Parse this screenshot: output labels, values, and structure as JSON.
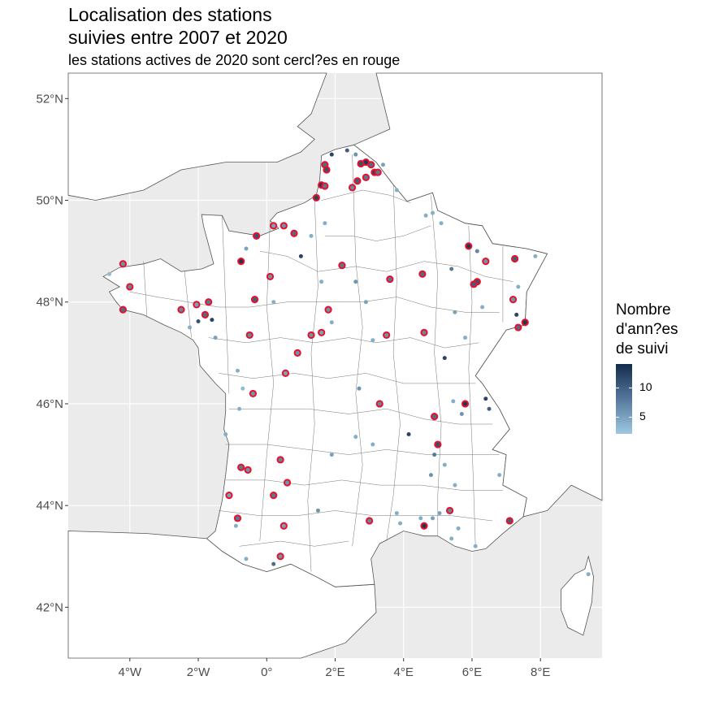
{
  "title_line1": "Localisation des stations",
  "title_line2": "suivies entre 2007 et 2020",
  "subtitle": "les stations actives de 2020 sont cercl?es en rouge",
  "legend": {
    "title_lines": [
      "Nombre",
      "d'ann?es",
      "de suivi"
    ],
    "labels": [
      {
        "value": 10,
        "text": "10"
      },
      {
        "value": 5,
        "text": "5"
      }
    ],
    "range": [
      2,
      14
    ],
    "colors": {
      "low": "#9dc9e0",
      "high": "#132b4b",
      "active_ring": "#e8102a"
    }
  },
  "axes": {
    "lon_range": [
      -5.8,
      9.8
    ],
    "lat_range": [
      41.0,
      52.5
    ],
    "x_ticks": [
      {
        "value": -4,
        "label": "4°W"
      },
      {
        "value": -2,
        "label": "2°W"
      },
      {
        "value": 0,
        "label": "0°"
      },
      {
        "value": 2,
        "label": "2°E"
      },
      {
        "value": 4,
        "label": "4°E"
      },
      {
        "value": 6,
        "label": "6°E"
      },
      {
        "value": 8,
        "label": "8°E"
      }
    ],
    "y_ticks": [
      {
        "value": 52,
        "label": "52°N"
      },
      {
        "value": 50,
        "label": "50°N"
      },
      {
        "value": 48,
        "label": "48°N"
      },
      {
        "value": 46,
        "label": "46°N"
      },
      {
        "value": 44,
        "label": "44°N"
      },
      {
        "value": 42,
        "label": "42°N"
      }
    ],
    "background": "#ebebeb",
    "land": "#ffffff"
  },
  "chart_data": {
    "type": "scatter",
    "x_axis": "longitude",
    "y_axis": "latitude",
    "color_variable": "Nombre d'ann?es de suivi",
    "points": [
      {
        "lon": 1.9,
        "lat": 50.9,
        "years": 12,
        "active": false
      },
      {
        "lon": 2.35,
        "lat": 50.98,
        "years": 10,
        "active": false
      },
      {
        "lon": 2.6,
        "lat": 50.9,
        "years": 6,
        "active": false
      },
      {
        "lon": 2.9,
        "lat": 50.75,
        "years": 13,
        "active": true
      },
      {
        "lon": 3.05,
        "lat": 50.7,
        "years": 9,
        "active": true
      },
      {
        "lon": 2.75,
        "lat": 50.72,
        "years": 11,
        "active": true
      },
      {
        "lon": 3.15,
        "lat": 50.55,
        "years": 12,
        "active": true
      },
      {
        "lon": 3.25,
        "lat": 50.55,
        "years": 8,
        "active": true
      },
      {
        "lon": 3.4,
        "lat": 50.7,
        "years": 5,
        "active": false
      },
      {
        "lon": 2.65,
        "lat": 50.38,
        "years": 10,
        "active": true
      },
      {
        "lon": 2.9,
        "lat": 50.45,
        "years": 8,
        "active": true
      },
      {
        "lon": 2.5,
        "lat": 50.25,
        "years": 7,
        "active": true
      },
      {
        "lon": 1.7,
        "lat": 50.7,
        "years": 9,
        "active": true
      },
      {
        "lon": 1.75,
        "lat": 50.6,
        "years": 11,
        "active": true
      },
      {
        "lon": 1.6,
        "lat": 50.3,
        "years": 13,
        "active": true
      },
      {
        "lon": 1.7,
        "lat": 50.28,
        "years": 8,
        "active": true
      },
      {
        "lon": 1.45,
        "lat": 50.05,
        "years": 12,
        "active": true
      },
      {
        "lon": 3.8,
        "lat": 50.2,
        "years": 4,
        "active": false
      },
      {
        "lon": 1.7,
        "lat": 49.55,
        "years": 4,
        "active": false
      },
      {
        "lon": 0.5,
        "lat": 49.5,
        "years": 6,
        "active": true
      },
      {
        "lon": 0.2,
        "lat": 49.5,
        "years": 5,
        "active": true
      },
      {
        "lon": -0.3,
        "lat": 49.3,
        "years": 11,
        "active": true
      },
      {
        "lon": 0.8,
        "lat": 49.35,
        "years": 9,
        "active": true
      },
      {
        "lon": 1.3,
        "lat": 49.3,
        "years": 4,
        "active": false
      },
      {
        "lon": -0.6,
        "lat": 49.05,
        "years": 5,
        "active": false
      },
      {
        "lon": -0.75,
        "lat": 48.8,
        "years": 13,
        "active": true
      },
      {
        "lon": 1.0,
        "lat": 48.9,
        "years": 12,
        "active": false
      },
      {
        "lon": 2.2,
        "lat": 48.72,
        "years": 8,
        "active": true
      },
      {
        "lon": 2.6,
        "lat": 48.4,
        "years": 6,
        "active": false
      },
      {
        "lon": 2.9,
        "lat": 48.0,
        "years": 5,
        "active": false
      },
      {
        "lon": 0.1,
        "lat": 48.5,
        "years": 6,
        "active": true
      },
      {
        "lon": 1.6,
        "lat": 48.4,
        "years": 4,
        "active": false
      },
      {
        "lon": 0.2,
        "lat": 48.0,
        "years": 4,
        "active": false
      },
      {
        "lon": -4.2,
        "lat": 48.75,
        "years": 6,
        "active": true
      },
      {
        "lon": -4.6,
        "lat": 48.55,
        "years": 3,
        "active": false
      },
      {
        "lon": -4.0,
        "lat": 48.3,
        "years": 7,
        "active": true
      },
      {
        "lon": -4.2,
        "lat": 47.85,
        "years": 9,
        "active": true
      },
      {
        "lon": -2.5,
        "lat": 47.85,
        "years": 7,
        "active": true
      },
      {
        "lon": -2.05,
        "lat": 47.95,
        "years": 5,
        "active": true
      },
      {
        "lon": -1.7,
        "lat": 48.0,
        "years": 8,
        "active": true
      },
      {
        "lon": -1.8,
        "lat": 47.75,
        "years": 9,
        "active": true
      },
      {
        "lon": -2.0,
        "lat": 47.62,
        "years": 11,
        "active": false
      },
      {
        "lon": -1.6,
        "lat": 47.65,
        "years": 12,
        "active": false
      },
      {
        "lon": -2.25,
        "lat": 47.5,
        "years": 4,
        "active": false
      },
      {
        "lon": -1.5,
        "lat": 47.3,
        "years": 5,
        "active": false
      },
      {
        "lon": -0.35,
        "lat": 48.05,
        "years": 10,
        "active": true
      },
      {
        "lon": -0.5,
        "lat": 47.35,
        "years": 7,
        "active": true
      },
      {
        "lon": 1.3,
        "lat": 47.35,
        "years": 6,
        "active": true
      },
      {
        "lon": 1.6,
        "lat": 47.4,
        "years": 5,
        "active": true
      },
      {
        "lon": 1.8,
        "lat": 47.85,
        "years": 6,
        "active": true
      },
      {
        "lon": 1.9,
        "lat": 47.6,
        "years": 4,
        "active": false
      },
      {
        "lon": 3.5,
        "lat": 47.35,
        "years": 6,
        "active": true
      },
      {
        "lon": 3.1,
        "lat": 47.25,
        "years": 4,
        "active": false
      },
      {
        "lon": 0.9,
        "lat": 47.0,
        "years": 6,
        "active": true
      },
      {
        "lon": 0.55,
        "lat": 46.6,
        "years": 5,
        "active": true
      },
      {
        "lon": -0.85,
        "lat": 46.65,
        "years": 4,
        "active": false
      },
      {
        "lon": -0.4,
        "lat": 46.2,
        "years": 6,
        "active": true
      },
      {
        "lon": -0.7,
        "lat": 46.3,
        "years": 3,
        "active": false
      },
      {
        "lon": -0.8,
        "lat": 45.9,
        "years": 4,
        "active": false
      },
      {
        "lon": -1.2,
        "lat": 45.4,
        "years": 4,
        "active": false
      },
      {
        "lon": 3.6,
        "lat": 48.45,
        "years": 8,
        "active": true
      },
      {
        "lon": 4.65,
        "lat": 49.7,
        "years": 4,
        "active": false
      },
      {
        "lon": 4.85,
        "lat": 49.75,
        "years": 4,
        "active": false
      },
      {
        "lon": 5.1,
        "lat": 49.55,
        "years": 4,
        "active": false
      },
      {
        "lon": 4.55,
        "lat": 48.55,
        "years": 9,
        "active": true
      },
      {
        "lon": 5.4,
        "lat": 48.65,
        "years": 8,
        "active": false
      },
      {
        "lon": 5.9,
        "lat": 49.1,
        "years": 13,
        "active": true
      },
      {
        "lon": 6.15,
        "lat": 49.0,
        "years": 7,
        "active": false
      },
      {
        "lon": 6.4,
        "lat": 48.8,
        "years": 6,
        "active": true
      },
      {
        "lon": 6.15,
        "lat": 48.4,
        "years": 11,
        "active": true
      },
      {
        "lon": 6.05,
        "lat": 48.35,
        "years": 10,
        "active": true
      },
      {
        "lon": 7.25,
        "lat": 48.85,
        "years": 10,
        "active": true
      },
      {
        "lon": 7.35,
        "lat": 48.3,
        "years": 4,
        "active": false
      },
      {
        "lon": 7.85,
        "lat": 48.9,
        "years": 4,
        "active": false
      },
      {
        "lon": 7.2,
        "lat": 48.05,
        "years": 6,
        "active": true
      },
      {
        "lon": 7.3,
        "lat": 47.75,
        "years": 12,
        "active": false
      },
      {
        "lon": 7.35,
        "lat": 47.5,
        "years": 9,
        "active": true
      },
      {
        "lon": 7.55,
        "lat": 47.6,
        "years": 13,
        "active": true
      },
      {
        "lon": 5.8,
        "lat": 47.3,
        "years": 4,
        "active": false
      },
      {
        "lon": 5.5,
        "lat": 47.8,
        "years": 5,
        "active": false
      },
      {
        "lon": 6.3,
        "lat": 47.9,
        "years": 4,
        "active": false
      },
      {
        "lon": 4.6,
        "lat": 47.4,
        "years": 7,
        "active": true
      },
      {
        "lon": 5.2,
        "lat": 46.9,
        "years": 12,
        "active": false
      },
      {
        "lon": 2.7,
        "lat": 46.3,
        "years": 6,
        "active": false
      },
      {
        "lon": 3.3,
        "lat": 46.0,
        "years": 7,
        "active": true
      },
      {
        "lon": 2.6,
        "lat": 45.35,
        "years": 4,
        "active": false
      },
      {
        "lon": 1.9,
        "lat": 45.0,
        "years": 5,
        "active": false
      },
      {
        "lon": 3.1,
        "lat": 45.2,
        "years": 4,
        "active": false
      },
      {
        "lon": 4.15,
        "lat": 45.4,
        "years": 12,
        "active": false
      },
      {
        "lon": 4.9,
        "lat": 45.75,
        "years": 9,
        "active": true
      },
      {
        "lon": 5.8,
        "lat": 46.0,
        "years": 13,
        "active": true
      },
      {
        "lon": 6.4,
        "lat": 46.1,
        "years": 12,
        "active": false
      },
      {
        "lon": 6.5,
        "lat": 45.9,
        "years": 10,
        "active": false
      },
      {
        "lon": 5.7,
        "lat": 45.8,
        "years": 6,
        "active": false
      },
      {
        "lon": 5.45,
        "lat": 46.05,
        "years": 4,
        "active": false
      },
      {
        "lon": 5.0,
        "lat": 45.2,
        "years": 11,
        "active": true
      },
      {
        "lon": 4.9,
        "lat": 45.0,
        "years": 8,
        "active": false
      },
      {
        "lon": 4.8,
        "lat": 44.6,
        "years": 6,
        "active": false
      },
      {
        "lon": 5.2,
        "lat": 44.8,
        "years": 4,
        "active": false
      },
      {
        "lon": 5.5,
        "lat": 44.4,
        "years": 4,
        "active": false
      },
      {
        "lon": 6.8,
        "lat": 44.6,
        "years": 4,
        "active": false
      },
      {
        "lon": 5.35,
        "lat": 43.9,
        "years": 7,
        "active": true
      },
      {
        "lon": 5.05,
        "lat": 43.85,
        "years": 5,
        "active": false
      },
      {
        "lon": 5.6,
        "lat": 43.55,
        "years": 4,
        "active": false
      },
      {
        "lon": 5.4,
        "lat": 43.35,
        "years": 4,
        "active": false
      },
      {
        "lon": 6.1,
        "lat": 43.2,
        "years": 4,
        "active": false
      },
      {
        "lon": 7.1,
        "lat": 43.7,
        "years": 10,
        "active": true
      },
      {
        "lon": 4.6,
        "lat": 43.6,
        "years": 13,
        "active": true
      },
      {
        "lon": 4.85,
        "lat": 43.75,
        "years": 5,
        "active": false
      },
      {
        "lon": 4.5,
        "lat": 43.75,
        "years": 4,
        "active": false
      },
      {
        "lon": 3.8,
        "lat": 43.85,
        "years": 4,
        "active": false
      },
      {
        "lon": 3.0,
        "lat": 43.7,
        "years": 7,
        "active": true
      },
      {
        "lon": 3.9,
        "lat": 43.65,
        "years": 4,
        "active": false
      },
      {
        "lon": 1.5,
        "lat": 43.9,
        "years": 6,
        "active": false
      },
      {
        "lon": 0.6,
        "lat": 44.45,
        "years": 6,
        "active": true
      },
      {
        "lon": 0.2,
        "lat": 44.2,
        "years": 8,
        "active": true
      },
      {
        "lon": 0.4,
        "lat": 44.9,
        "years": 7,
        "active": true
      },
      {
        "lon": -0.75,
        "lat": 44.75,
        "years": 8,
        "active": true
      },
      {
        "lon": -0.55,
        "lat": 44.7,
        "years": 6,
        "active": true
      },
      {
        "lon": -1.1,
        "lat": 44.2,
        "years": 5,
        "active": true
      },
      {
        "lon": -0.85,
        "lat": 43.75,
        "years": 8,
        "active": true
      },
      {
        "lon": -0.9,
        "lat": 43.6,
        "years": 4,
        "active": false
      },
      {
        "lon": 0.5,
        "lat": 43.6,
        "years": 5,
        "active": true
      },
      {
        "lon": 0.4,
        "lat": 43.0,
        "years": 6,
        "active": true
      },
      {
        "lon": -0.6,
        "lat": 42.95,
        "years": 4,
        "active": false
      },
      {
        "lon": 0.2,
        "lat": 42.85,
        "years": 9,
        "active": false
      },
      {
        "lon": 9.4,
        "lat": 42.65,
        "years": 4,
        "active": false
      }
    ]
  }
}
